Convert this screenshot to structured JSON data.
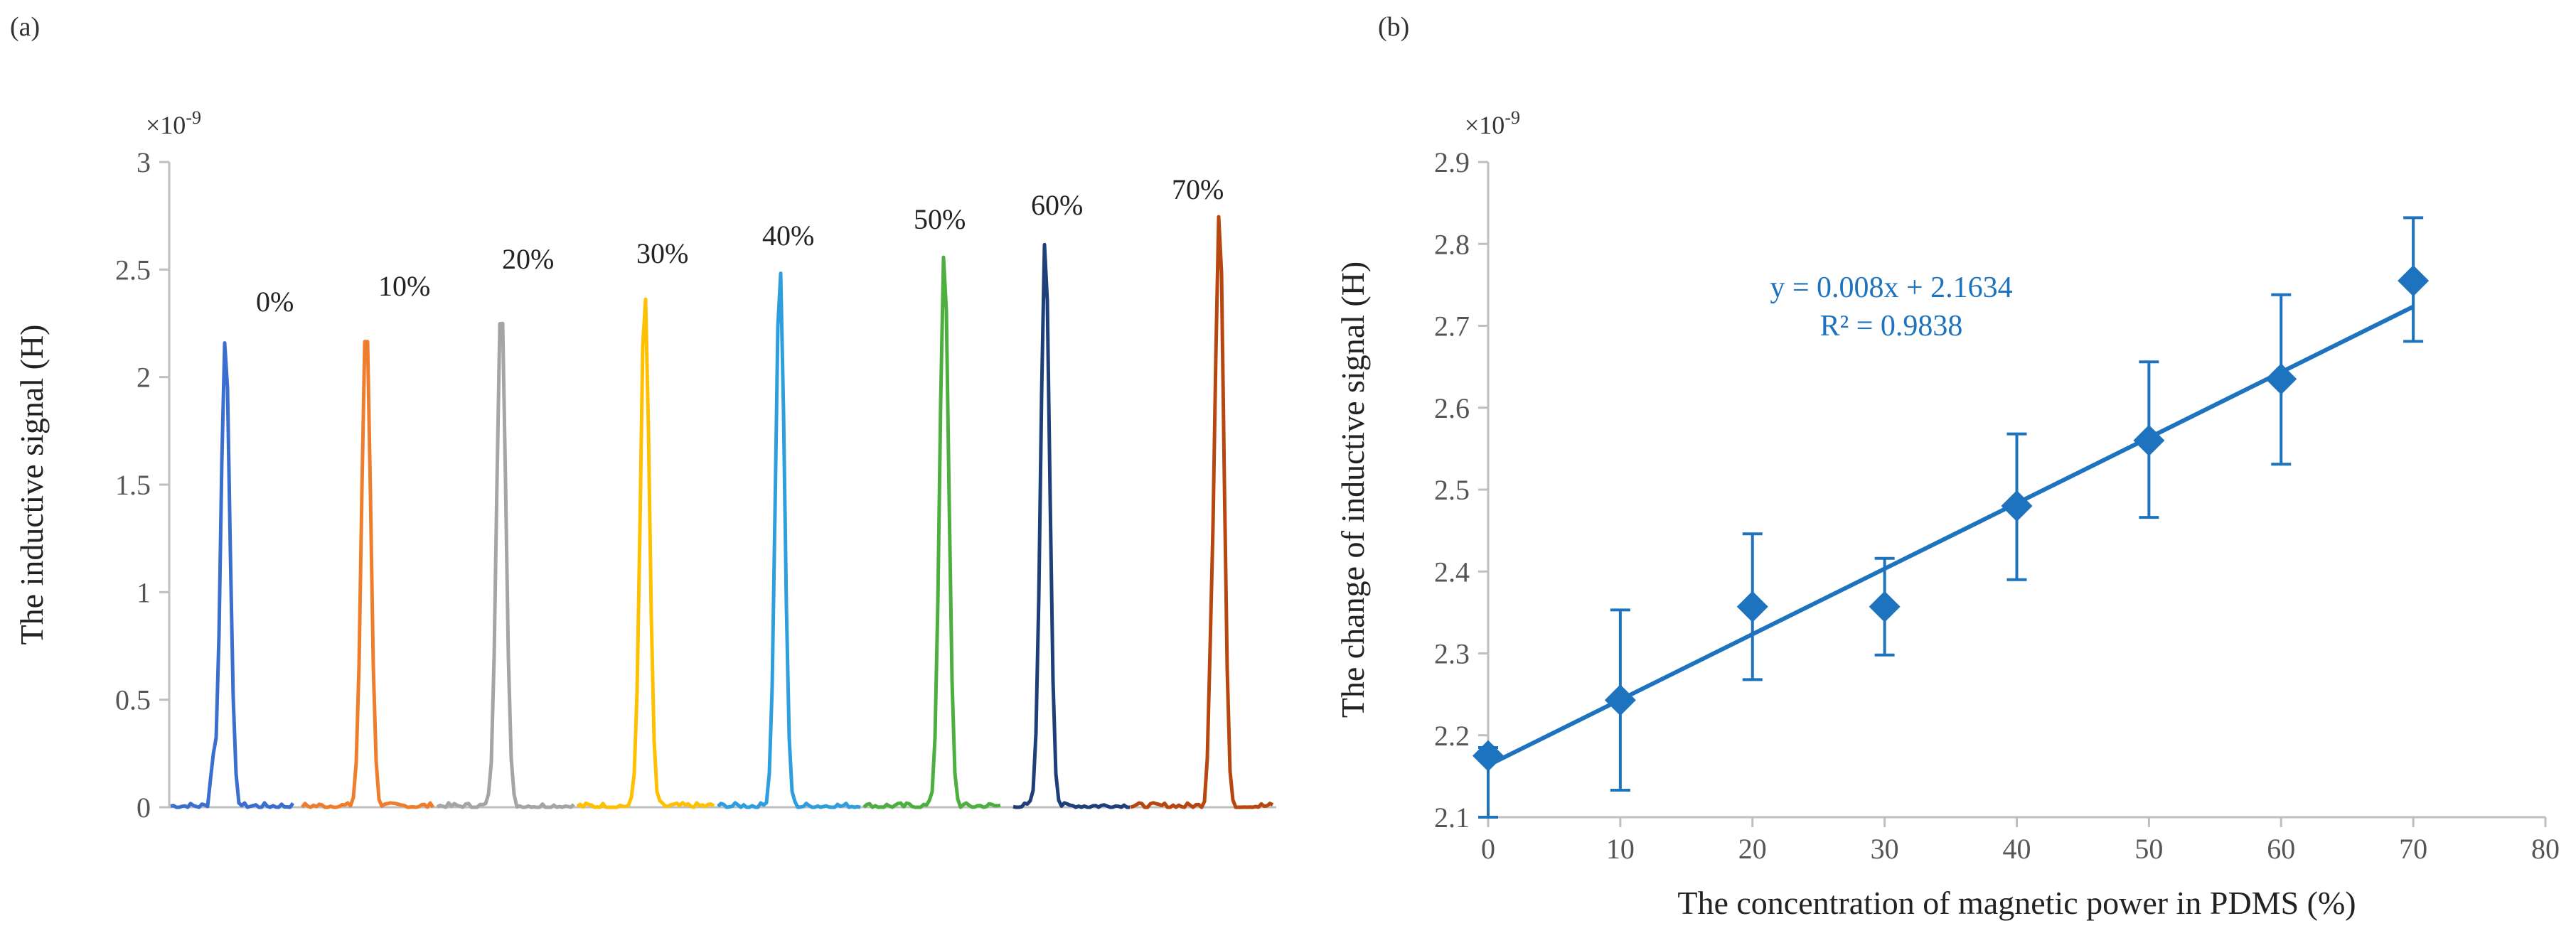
{
  "panel_a": {
    "label": "(a)"
  },
  "panel_b": {
    "label": "(b)"
  },
  "chart_data": [
    {
      "type": "line",
      "title": "",
      "xlabel": "",
      "ylabel": "The inductive signal (H)",
      "multiplier": "×10",
      "multiplier_exp": "-9",
      "ylim": [
        0,
        3
      ],
      "yticks": [
        "0",
        "0.5",
        "1",
        "1.5",
        "2",
        "2.5",
        "3"
      ],
      "ytick_values": [
        0,
        0.5,
        1,
        1.5,
        2,
        2.5,
        3
      ],
      "series": [
        {
          "name": "0%",
          "peak": 2.18,
          "color": "#3a6fcf"
        },
        {
          "name": "10%",
          "peak": 2.27,
          "color": "#ef7d2e"
        },
        {
          "name": "20%",
          "peak": 2.37,
          "color": "#a5a5a5"
        },
        {
          "name": "30%",
          "peak": 2.38,
          "color": "#ffc000"
        },
        {
          "name": "40%",
          "peak": 2.5,
          "color": "#2e9ede"
        },
        {
          "name": "50%",
          "peak": 2.57,
          "color": "#4caf3f"
        },
        {
          "name": "60%",
          "peak": 2.63,
          "color": "#1f3f7a"
        },
        {
          "name": "70%",
          "peak": 2.77,
          "color": "#b7470e"
        }
      ]
    },
    {
      "type": "scatter",
      "title": "",
      "xlabel": "The concentration of magnetic power in PDMS (%)",
      "ylabel": "The change of inductive signal (H)",
      "multiplier": "×10",
      "multiplier_exp": "-9",
      "xlim": [
        0,
        80
      ],
      "ylim": [
        2.1,
        2.9
      ],
      "xticks": [
        "0",
        "10",
        "20",
        "30",
        "40",
        "50",
        "60",
        "70",
        "80"
      ],
      "xtick_values": [
        0,
        10,
        20,
        30,
        40,
        50,
        60,
        70,
        80
      ],
      "yticks": [
        "2.1",
        "2.2",
        "2.3",
        "2.4",
        "2.5",
        "2.6",
        "2.7",
        "2.8",
        "2.9"
      ],
      "ytick_values": [
        2.1,
        2.2,
        2.3,
        2.4,
        2.5,
        2.6,
        2.7,
        2.8,
        2.9
      ],
      "x": [
        0,
        10,
        20,
        30,
        40,
        50,
        60,
        70
      ],
      "y": [
        2.175,
        2.243,
        2.357,
        2.357,
        2.48,
        2.56,
        2.635,
        2.755
      ],
      "err_low": [
        2.1,
        2.133,
        2.268,
        2.298,
        2.39,
        2.466,
        2.531,
        2.681
      ],
      "err_high": [
        2.185,
        2.353,
        2.446,
        2.416,
        2.568,
        2.656,
        2.738,
        2.832
      ],
      "trendline": {
        "slope": 0.008,
        "intercept": 2.1634,
        "equation": "y = 0.008x + 2.1634",
        "r2": "R² = 0.9838"
      },
      "color": "#1e73be"
    }
  ]
}
